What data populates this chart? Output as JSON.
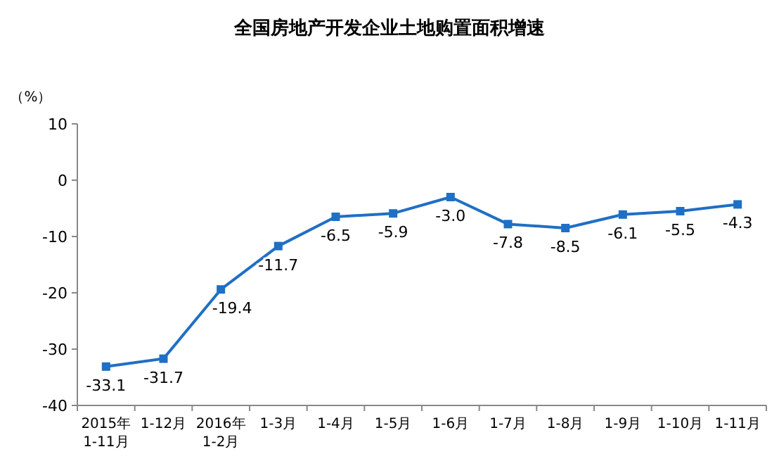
{
  "chart_data": {
    "type": "line",
    "title": "全国房地产开发企业土地购置面积增速",
    "ylabel": "（%）",
    "categories": [
      "2015年\n1-11月",
      "1-12月",
      "2016年\n1-2月",
      "1-3月",
      "1-4月",
      "1-5月",
      "1-6月",
      "1-7月",
      "1-8月",
      "1-9月",
      "1-10月",
      "1-11月"
    ],
    "series": [
      {
        "color": "#1f6fc5",
        "values": [
          -33.1,
          -31.7,
          -19.4,
          -11.7,
          -6.5,
          -5.9,
          -3.0,
          -7.8,
          -8.5,
          -6.1,
          -5.5,
          -4.3
        ]
      }
    ],
    "ylim": [
      -40,
      10
    ],
    "yticks": [
      -40,
      -30,
      -20,
      -10,
      0,
      10
    ],
    "marker": "square",
    "line_style": "solid",
    "grid": false,
    "value_labels": [
      "-33.1",
      "-31.7",
      "-19.4",
      "-11.7",
      "-6.5",
      "-5.9",
      "-3.0",
      "-7.8",
      "-8.5",
      "-6.1",
      "-5.5",
      "-4.3"
    ]
  }
}
